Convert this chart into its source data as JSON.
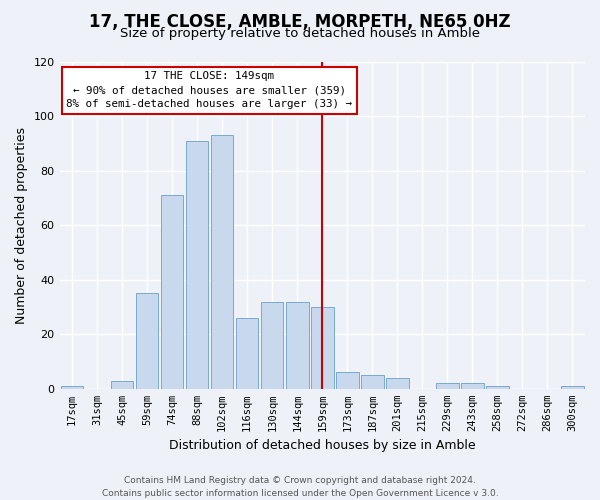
{
  "title": "17, THE CLOSE, AMBLE, MORPETH, NE65 0HZ",
  "subtitle": "Size of property relative to detached houses in Amble",
  "xlabel": "Distribution of detached houses by size in Amble",
  "ylabel": "Number of detached properties",
  "bar_labels": [
    "17sqm",
    "31sqm",
    "45sqm",
    "59sqm",
    "74sqm",
    "88sqm",
    "102sqm",
    "116sqm",
    "130sqm",
    "144sqm",
    "159sqm",
    "173sqm",
    "187sqm",
    "201sqm",
    "215sqm",
    "229sqm",
    "243sqm",
    "258sqm",
    "272sqm",
    "286sqm",
    "300sqm"
  ],
  "bar_heights": [
    1,
    0,
    3,
    35,
    71,
    91,
    93,
    26,
    32,
    32,
    30,
    6,
    5,
    4,
    0,
    2,
    2,
    1,
    0,
    0,
    1
  ],
  "bar_color": "#c8d9ee",
  "bar_edge_color": "#7aaad0",
  "vline_color": "#cc0000",
  "ylim": [
    0,
    120
  ],
  "yticks": [
    0,
    20,
    40,
    60,
    80,
    100,
    120
  ],
  "annotation_box_text": "17 THE CLOSE: 149sqm\n← 90% of detached houses are smaller (359)\n8% of semi-detached houses are larger (33) →",
  "annotation_box_color": "#cc0000",
  "footer_text": "Contains HM Land Registry data © Crown copyright and database right 2024.\nContains public sector information licensed under the Open Government Licence v 3.0.",
  "background_color": "#eef2f8",
  "grid_color": "#ffffff",
  "title_fontsize": 12,
  "subtitle_fontsize": 9.5,
  "axis_label_fontsize": 9,
  "tick_fontsize": 7.5,
  "footer_fontsize": 6.5
}
